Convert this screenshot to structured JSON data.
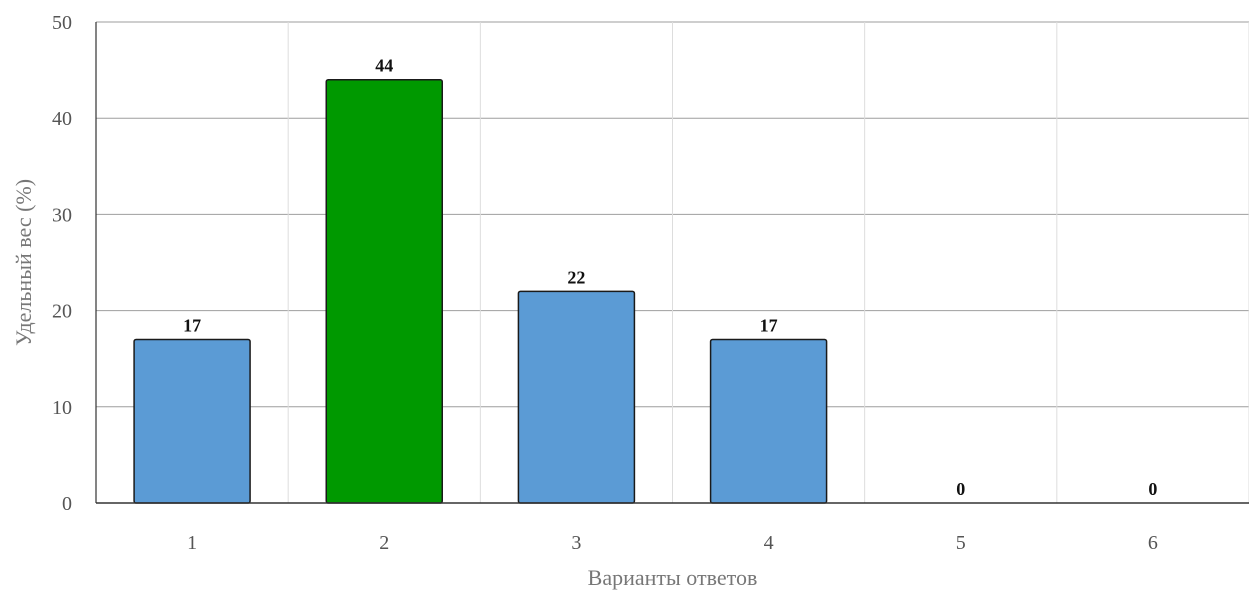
{
  "chart_data": {
    "type": "bar",
    "categories": [
      "1",
      "2",
      "3",
      "4",
      "5",
      "6"
    ],
    "values": [
      17,
      44,
      22,
      17,
      0,
      0
    ],
    "highlight_index": 1,
    "colors": {
      "bar": "#5b9bd5",
      "highlight": "#009900",
      "bar_stroke": "#1a1a1a",
      "grid_major": "#9e9e9e",
      "grid_minor": "#dddddd",
      "axis": "#333333"
    },
    "xlabel": "Варианты ответов",
    "ylabel": "Удельный вес (%)",
    "ylim": [
      0,
      50
    ],
    "yticks": [
      0,
      10,
      20,
      30,
      40,
      50
    ],
    "grid": true,
    "legend": "none"
  }
}
